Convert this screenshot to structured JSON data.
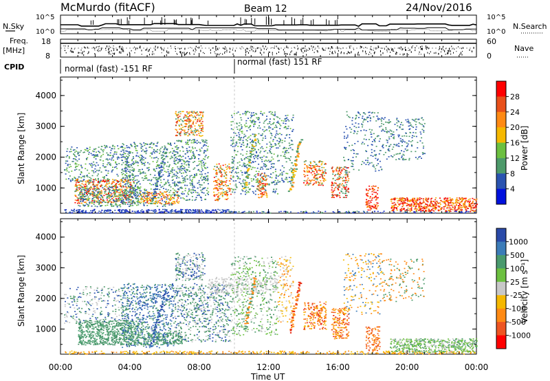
{
  "header": {
    "station": "McMurdo (fitACF)",
    "beam": "Beam 12",
    "date": "24/Nov/2016"
  },
  "top_panels": {
    "nsky_label": "N.Sky",
    "nsky_ticks": [
      "10^5",
      "10^0"
    ],
    "nsearch_label": "N.Search",
    "nsearch_ticks": [
      "10^5",
      "10^0"
    ],
    "freq_label": "Freq.",
    "freq_unit": "[MHz]",
    "freq_ticks": [
      "18",
      "8"
    ],
    "nave_label": "Nave",
    "nave_ticks": [
      "60",
      "0"
    ],
    "cpid_label": "CPID",
    "cpid_segments": [
      "normal (fast) -151 RF",
      "normal (fast) 151 RF"
    ]
  },
  "chart_data": [
    {
      "type": "heatmap",
      "name": "power",
      "ylabel": "Slant Range [km]",
      "ylim": [
        180,
        4600
      ],
      "yticks": [
        "4000",
        "3000",
        "2000",
        "1000"
      ],
      "colorbar_label": "Power [dB]",
      "colorbar_ticks": [
        "28",
        "24",
        "20",
        "16",
        "12",
        "8",
        "4"
      ],
      "colorbar_colors": [
        "#ff0000",
        "#e8501a",
        "#ff8a14",
        "#f5b800",
        "#6cc040",
        "#4d9a6a",
        "#2a53b0",
        "#0011dd"
      ]
    },
    {
      "type": "heatmap",
      "name": "velocity",
      "ylabel": "Slant Range [km]",
      "ylim": [
        180,
        4600
      ],
      "yticks": [
        "4000",
        "3000",
        "2000",
        "1000"
      ],
      "colorbar_label": "Velocity [m s⁻¹]",
      "colorbar_ticks": [
        "1000",
        "500",
        "100",
        "25",
        "-25",
        "-100",
        "-500",
        "-1000"
      ],
      "colorbar_colors": [
        "#2a4aa8",
        "#3c7cb8",
        "#4a9a6e",
        "#6cc040",
        "#c8c8c8",
        "#f5b800",
        "#ff8a14",
        "#ee5522",
        "#ff0000"
      ]
    }
  ],
  "x_axis": {
    "ticks": [
      "00:00",
      "04:00",
      "08:00",
      "12:00",
      "16:00",
      "20:00",
      "00:00"
    ],
    "label": "Time UT"
  }
}
